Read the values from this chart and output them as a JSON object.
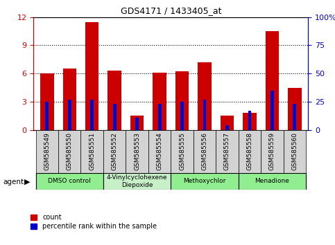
{
  "title": "GDS4171 / 1433405_at",
  "samples": [
    "GSM585549",
    "GSM585550",
    "GSM585551",
    "GSM585552",
    "GSM585553",
    "GSM585554",
    "GSM585555",
    "GSM585556",
    "GSM585557",
    "GSM585558",
    "GSM585559",
    "GSM585560"
  ],
  "count_values": [
    6.0,
    6.5,
    11.5,
    6.3,
    1.5,
    6.1,
    6.2,
    7.2,
    1.5,
    1.8,
    10.5,
    4.5
  ],
  "percentile_values": [
    3.0,
    3.2,
    3.2,
    2.8,
    1.3,
    2.8,
    3.0,
    3.2,
    0.5,
    2.0,
    4.2,
    2.8
  ],
  "ylim_left": [
    0,
    12
  ],
  "ylim_right": [
    0,
    100
  ],
  "yticks_left": [
    0,
    3,
    6,
    9,
    12
  ],
  "yticks_right": [
    0,
    25,
    50,
    75,
    100
  ],
  "ytick_labels_right": [
    "0",
    "25",
    "50",
    "75",
    "100%"
  ],
  "agents": [
    {
      "label": "DMSO control",
      "start": 0,
      "end": 2,
      "color": "#90ee90"
    },
    {
      "label": "4-Vinylcyclohexene\nDiepoxide",
      "start": 3,
      "end": 5,
      "color": "#c8f0c8"
    },
    {
      "label": "Methoxychlor",
      "start": 6,
      "end": 8,
      "color": "#90ee90"
    },
    {
      "label": "Menadione",
      "start": 9,
      "end": 11,
      "color": "#90ee90"
    }
  ],
  "bar_color_red": "#cc0000",
  "bar_color_blue": "#0000cc",
  "bar_width": 0.6,
  "blue_bar_width": 0.15,
  "left_axis_color": "#cc0000",
  "right_axis_color": "#0000cc",
  "grid_color": "black"
}
